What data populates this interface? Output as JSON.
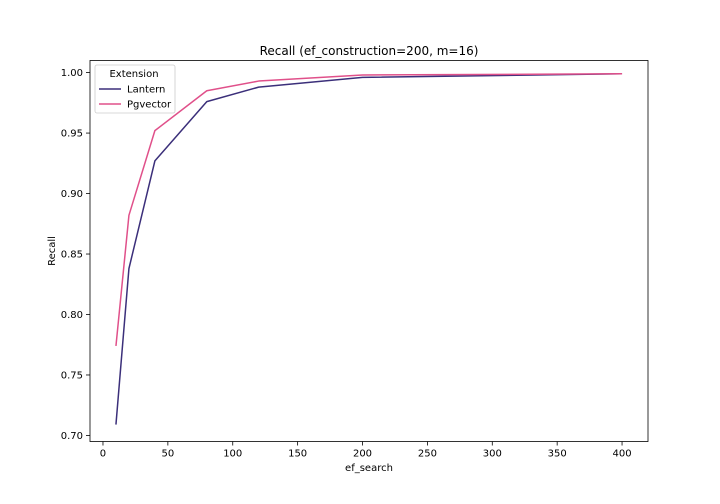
{
  "chart_data": {
    "type": "line",
    "title": "Recall (ef_construction=200, m=16)",
    "xlabel": "ef_search",
    "ylabel": "Recall",
    "xlim": [
      -10,
      420
    ],
    "ylim": [
      0.695,
      1.01
    ],
    "xticks": [
      0,
      50,
      100,
      150,
      200,
      250,
      300,
      350,
      400
    ],
    "yticks": [
      0.7,
      0.75,
      0.8,
      0.85,
      0.9,
      0.95,
      1.0
    ],
    "ytick_labels": [
      "0.70",
      "0.75",
      "0.80",
      "0.85",
      "0.90",
      "0.95",
      "1.00"
    ],
    "grid": false,
    "legend": {
      "title": "Extension",
      "placement": "top-left"
    },
    "x": [
      10,
      20,
      40,
      80,
      120,
      200,
      400
    ],
    "series": [
      {
        "name": "Lantern",
        "color": "#3b2f7a",
        "values": [
          0.709,
          0.838,
          0.927,
          0.976,
          0.988,
          0.996,
          0.999
        ]
      },
      {
        "name": "Pgvector",
        "color": "#e0508a",
        "values": [
          0.774,
          0.882,
          0.952,
          0.985,
          0.993,
          0.998,
          0.999
        ]
      }
    ]
  }
}
